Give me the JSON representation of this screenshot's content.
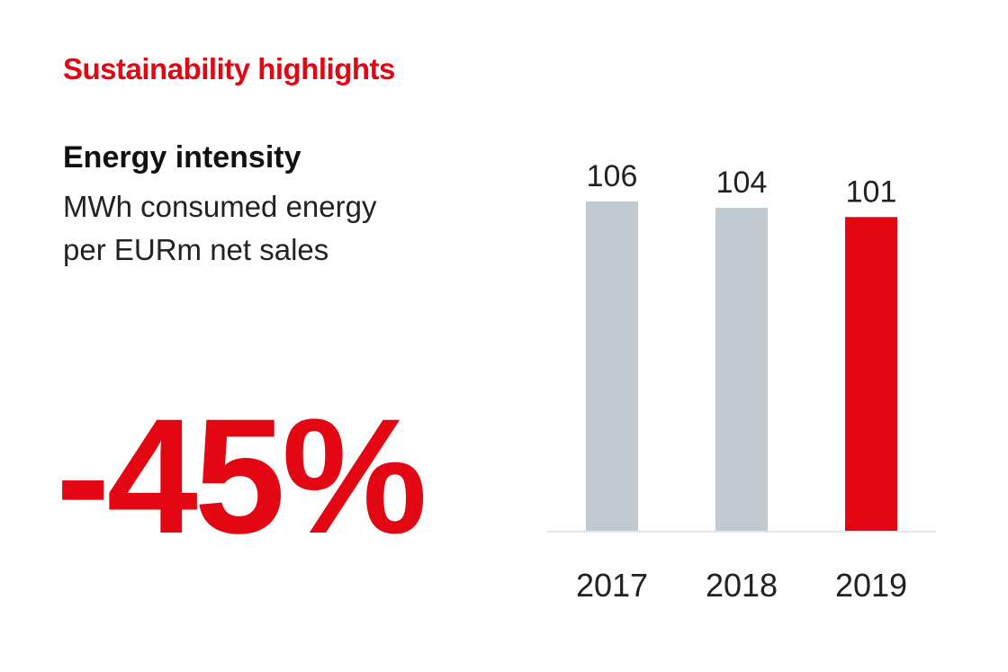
{
  "heading": "Sustainability highlights",
  "metric": {
    "title": "Energy intensity",
    "subtitle_line1": "MWh consumed energy",
    "subtitle_line2": "per EURm net sales",
    "change": "-45%"
  },
  "colors": {
    "accent": "#e30613",
    "past_bar": "#c1cad1",
    "axis": "#e4e6e8",
    "text": "#222222"
  },
  "chart_data": {
    "type": "bar",
    "categories": [
      "2017",
      "2018",
      "2019"
    ],
    "values": [
      106,
      104,
      101
    ],
    "highlight_index": 2,
    "grid": false,
    "value_labels": true
  }
}
